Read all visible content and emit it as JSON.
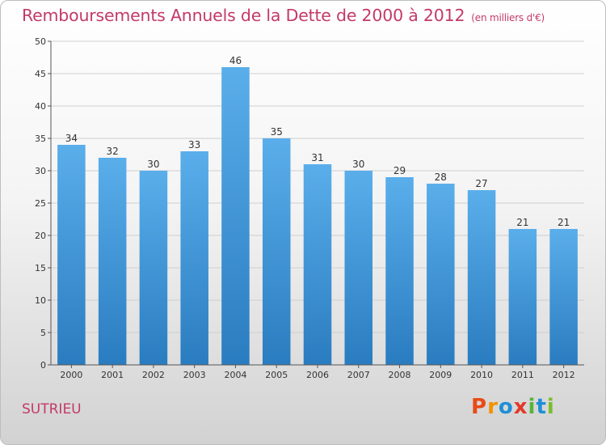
{
  "header": {
    "title": "Remboursements Annuels de la Dette de 2000 à 2012",
    "unit": "(en milliers d'€)"
  },
  "footer": {
    "commune": "SUTRIEU",
    "logo_text": "Proxiti",
    "logo_colors": [
      "#e84b16",
      "#f29100",
      "#1e8fd6",
      "#e23a2a",
      "#57b43c",
      "#1e8fd6",
      "#7abd2c"
    ]
  },
  "colors": {
    "title": "#c33a66",
    "bar_top": "#5aaeea",
    "bar_bottom": "#2a7cc0",
    "grid": "#cfcfcf",
    "axis": "#555555"
  },
  "chart_data": {
    "type": "bar",
    "title": "Remboursements Annuels de la Dette de 2000 à 2012",
    "subtitle": "(en milliers d'€)",
    "xlabel": "",
    "ylabel": "",
    "categories": [
      "2000",
      "2001",
      "2002",
      "2003",
      "2004",
      "2005",
      "2006",
      "2007",
      "2008",
      "2009",
      "2010",
      "2011",
      "2012"
    ],
    "values": [
      34,
      32,
      30,
      33,
      46,
      35,
      31,
      30,
      29,
      28,
      27,
      21,
      21
    ],
    "ylim": [
      0,
      50
    ],
    "yticks": [
      0,
      5,
      10,
      15,
      20,
      25,
      30,
      35,
      40,
      45,
      50
    ],
    "grid": true,
    "legend": "none"
  }
}
